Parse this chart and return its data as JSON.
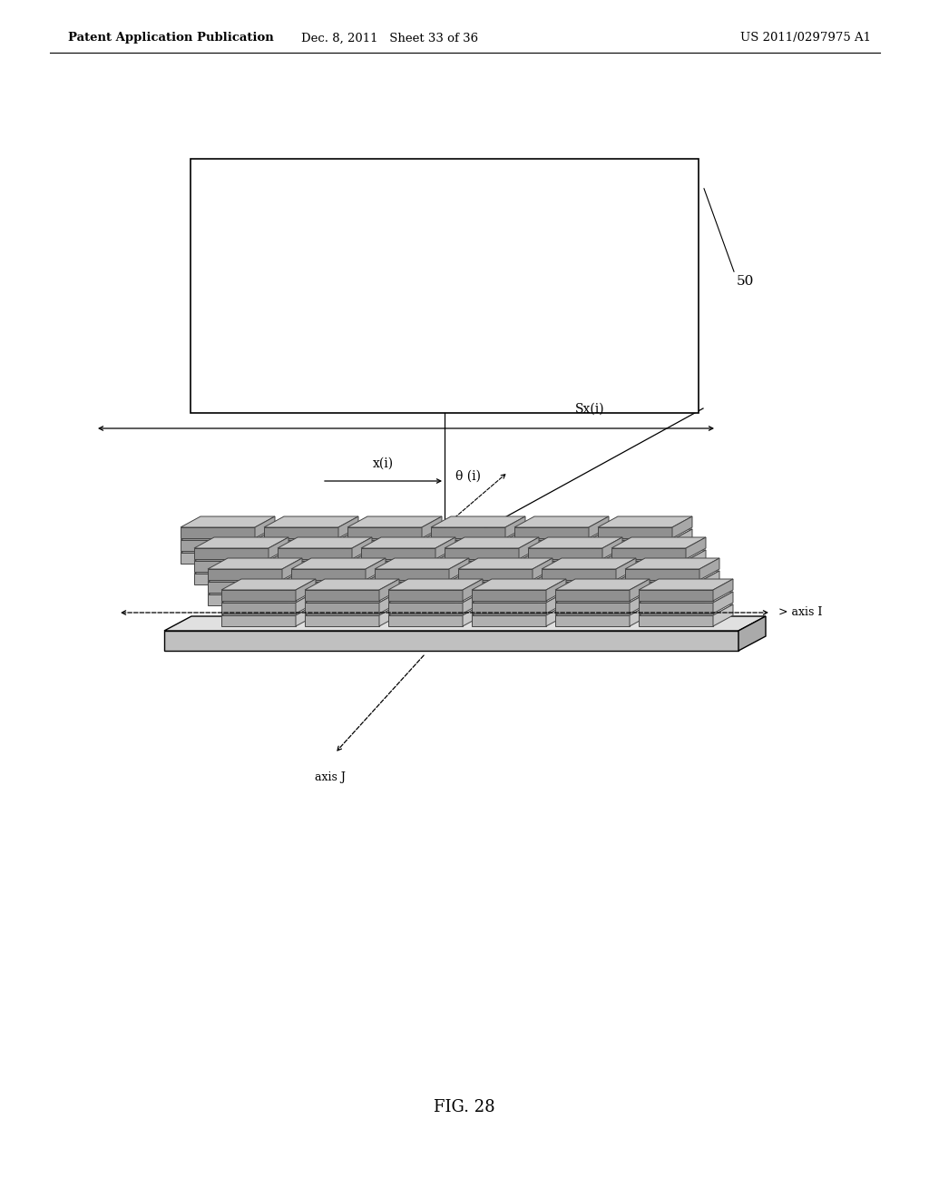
{
  "bg_color": "#ffffff",
  "header_left": "Patent Application Publication",
  "header_mid": "Dec. 8, 2011   Sheet 33 of 36",
  "header_right": "US 2011/0297975 A1",
  "figure_label": "FIG. 28",
  "label_50": "50",
  "label_sx": "Sx(i)",
  "label_x": "x(i)",
  "label_theta": "θ (i)",
  "label_axis_i": "axis I",
  "label_axis_j": "axis J",
  "font_size_header": 9.5,
  "font_size_labels": 10,
  "font_size_fig": 13
}
